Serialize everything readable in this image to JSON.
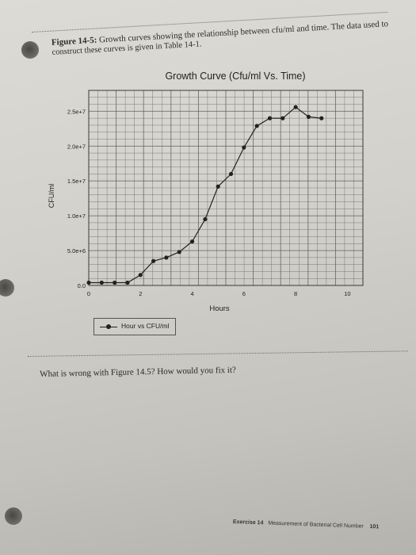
{
  "caption": {
    "figure_label": "Figure 14-5:",
    "line1_text": "Growth curves showing the relationship between cfu/ml and time. The data used to",
    "line2_text": "construct these curves is given in Table 14-1."
  },
  "question": "What is wrong with Figure 14.5? How would you fix it?",
  "footer": {
    "exercise": "Exercise 14",
    "title": "Measurement of Bacterial Cell Number",
    "page": "101"
  },
  "chart_data": {
    "type": "line",
    "title": "Growth Curve (Cfu/ml Vs. Time)",
    "xlabel": "Hours",
    "ylabel": "CFU/ml",
    "xlim": [
      0,
      10.6
    ],
    "ylim": [
      0,
      28000000
    ],
    "x_ticks": [
      0,
      2,
      4,
      6,
      8,
      10
    ],
    "x_tick_labels": [
      "0",
      "2",
      "4",
      "6",
      "8",
      "10"
    ],
    "y_ticks": [
      0,
      5000000,
      10000000,
      15000000,
      20000000,
      25000000
    ],
    "y_tick_labels": [
      "0.0",
      "5.0e+6",
      "1.0e+7",
      "1.5e+7",
      "2.0e+7",
      "2.5e+7"
    ],
    "grid": true,
    "legend_position": "below-left",
    "series": [
      {
        "name": "Hour vs CFU/ml",
        "x": [
          0,
          0.5,
          1,
          1.5,
          2,
          2.5,
          3,
          3.5,
          4,
          4.5,
          5,
          5.5,
          6,
          6.5,
          7,
          7.5,
          8,
          8.5,
          9
        ],
        "y": [
          400000,
          400000,
          400000,
          400000,
          1500000,
          3500000,
          4000000,
          4800000,
          6300000,
          9500000,
          14200000,
          16000000,
          19800000,
          22900000,
          24000000,
          24000000,
          25600000,
          24200000,
          24000000
        ]
      }
    ],
    "colors": {
      "line": "#222222",
      "grid": "#5a5a58",
      "frame": "#3a3a3a"
    }
  }
}
